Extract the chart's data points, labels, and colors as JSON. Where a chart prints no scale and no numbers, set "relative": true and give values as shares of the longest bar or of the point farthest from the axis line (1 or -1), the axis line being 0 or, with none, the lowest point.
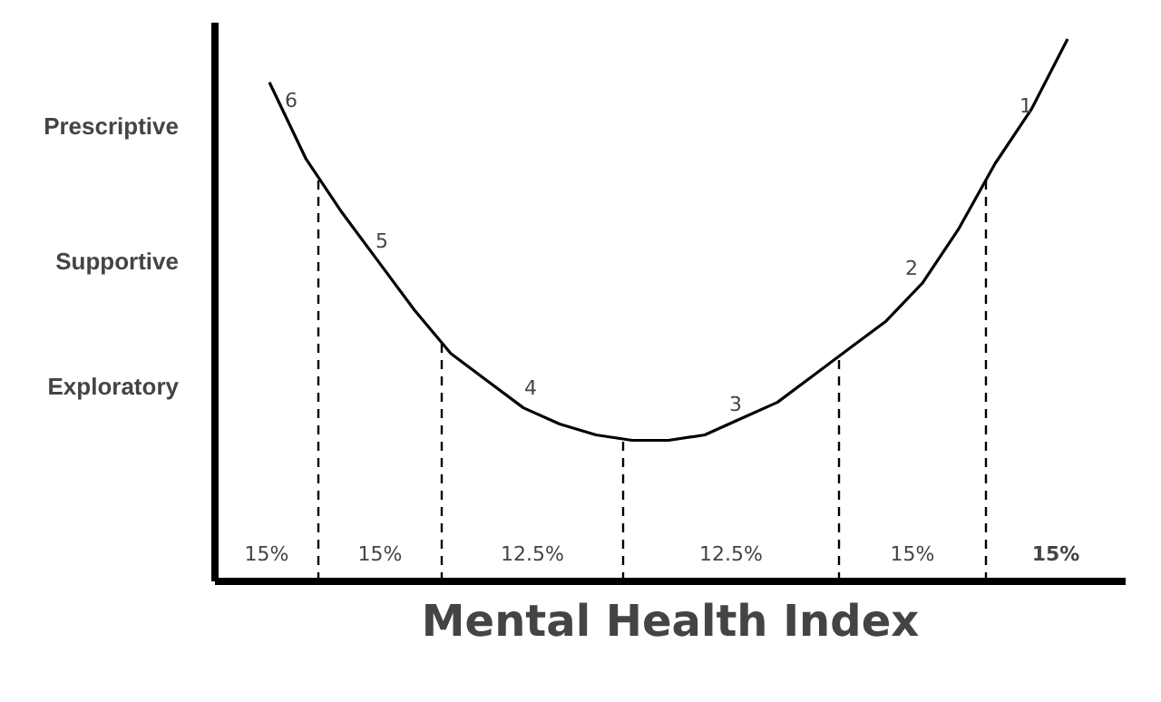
{
  "chart_data": {
    "type": "line",
    "xlabel": "Mental Health Index",
    "relative": true,
    "categories": [
      null,
      null,
      null,
      null,
      null,
      null,
      null,
      null,
      null,
      null,
      null,
      null,
      null,
      null,
      null,
      null,
      null,
      null,
      null,
      null,
      null,
      null,
      null,
      null,
      null
    ],
    "series": [
      {
        "color": "#000000",
        "values": [
          null,
          0.92,
          0.78,
          0.68,
          0.59,
          0.5,
          0.42,
          0.37,
          0.32,
          0.29,
          0.27,
          0.26,
          0.26,
          0.27,
          0.3,
          0.33,
          0.38,
          0.43,
          0.48,
          0.55,
          0.65,
          0.77,
          0.87,
          1,
          null
        ]
      }
    ],
    "marker": "none",
    "line_style": "solid",
    "annotations": [
      "15%",
      "15%",
      "12.5%",
      "12.5%",
      "15%",
      "15%",
      "6",
      "5",
      "4",
      "3",
      "2",
      "1",
      "Prescriptive",
      "Supportive",
      "Exploratory"
    ]
  }
}
